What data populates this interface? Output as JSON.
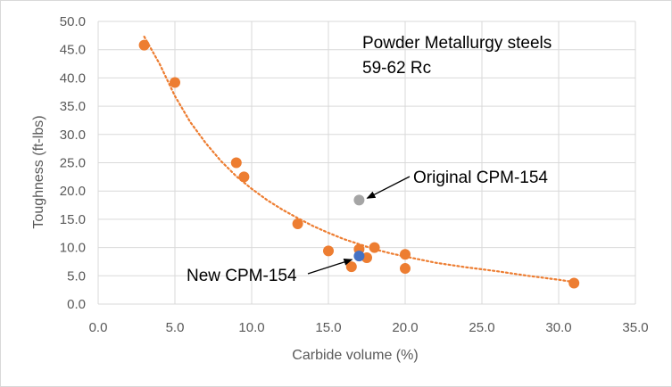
{
  "chart_data": {
    "type": "scatter",
    "title": "",
    "xlabel": "Carbide volume (%)",
    "ylabel": "Toughness (ft-lbs)",
    "xlim": [
      0,
      35
    ],
    "ylim": [
      0,
      50
    ],
    "x_ticks": [
      "0.0",
      "5.0",
      "10.0",
      "15.0",
      "20.0",
      "25.0",
      "30.0",
      "35.0"
    ],
    "y_ticks": [
      "0.0",
      "5.0",
      "10.0",
      "15.0",
      "20.0",
      "25.0",
      "30.0",
      "35.0",
      "40.0",
      "45.0",
      "50.0"
    ],
    "grid": "vertical and horizontal",
    "legend": "none",
    "colors": {
      "pm_steels": "#ED7D31",
      "original": "#A5A5A5",
      "new": "#4472C4",
      "trendline": "#ED7D31"
    },
    "series": [
      {
        "points": [
          [
            3.0,
            45.8
          ],
          [
            5.0,
            39.2
          ],
          [
            9.0,
            25.0
          ],
          [
            9.5,
            22.5
          ],
          [
            13.0,
            14.2
          ],
          [
            15.0,
            9.4
          ],
          [
            16.5,
            6.6
          ],
          [
            17.0,
            9.7
          ],
          [
            17.5,
            8.2
          ],
          [
            18.0,
            10.0
          ],
          [
            20.0,
            8.8
          ],
          [
            20.0,
            6.3
          ],
          [
            31.0,
            3.7
          ]
        ],
        "color": "#ED7D31",
        "trendline": "power (dotted)"
      },
      {
        "points": [
          [
            17.0,
            18.4
          ]
        ],
        "color": "#A5A5A5"
      },
      {
        "points": [
          [
            17.0,
            8.5
          ]
        ],
        "color": "#4472C4"
      }
    ],
    "trend_points": [
      [
        3.0,
        47.3
      ],
      [
        4.0,
        42.5
      ],
      [
        5.0,
        36.8
      ],
      [
        6.0,
        32.2
      ],
      [
        7.0,
        28.5
      ],
      [
        8.0,
        25.3
      ],
      [
        9.0,
        22.6
      ],
      [
        10.0,
        20.4
      ],
      [
        11.0,
        18.4
      ],
      [
        12.0,
        16.7
      ],
      [
        13.0,
        15.2
      ],
      [
        14.0,
        13.8
      ],
      [
        15.0,
        12.6
      ],
      [
        16.0,
        11.5
      ],
      [
        17.0,
        10.6
      ],
      [
        18.0,
        9.7
      ],
      [
        19.0,
        9.0
      ],
      [
        20.0,
        8.4
      ],
      [
        22.0,
        7.3
      ],
      [
        24.0,
        6.5
      ],
      [
        26.0,
        5.8
      ],
      [
        28.0,
        5.0
      ],
      [
        30.0,
        4.3
      ],
      [
        31.0,
        3.9
      ]
    ],
    "annotations": {
      "heading_line1": "Powder Metallurgy steels",
      "heading_line2": "59-62 Rc",
      "original_label": "Original CPM-154",
      "new_label": "New CPM-154"
    }
  }
}
